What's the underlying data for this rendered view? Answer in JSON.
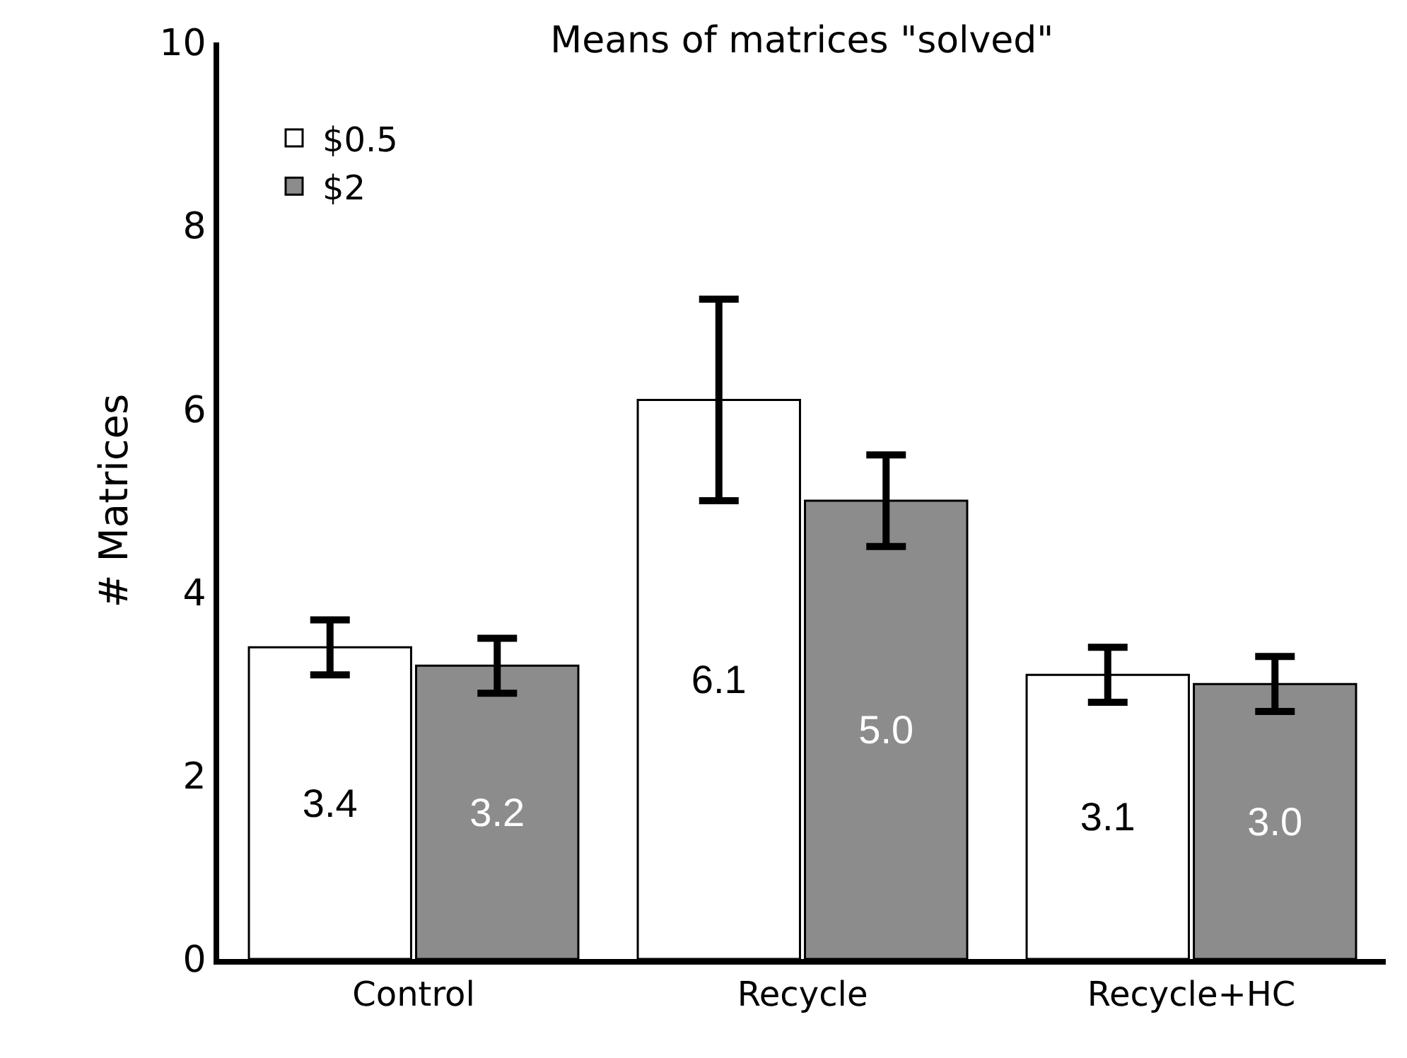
{
  "chart_data": {
    "type": "bar",
    "title": "Means of matrices \"solved\"",
    "ylabel": "# Matrices",
    "categories": [
      "Control",
      "Recycle",
      "Recycle+HC"
    ],
    "series": [
      {
        "name": "$0.5",
        "color": "#ffffff",
        "values": [
          3.4,
          6.1,
          3.1
        ],
        "value_labels": [
          "3.4",
          "6.1",
          "3.1"
        ],
        "errors": [
          0.3,
          1.1,
          0.3
        ]
      },
      {
        "name": "$2",
        "color": "#8c8c8c",
        "values": [
          3.2,
          5.0,
          3.0
        ],
        "value_labels": [
          "3.2",
          "5.0",
          "3.0"
        ],
        "errors": [
          0.3,
          0.5,
          0.3
        ]
      }
    ],
    "ylim": [
      0,
      10
    ],
    "yticks": [
      0,
      2,
      4,
      6,
      8,
      10
    ],
    "legend": "top left"
  }
}
